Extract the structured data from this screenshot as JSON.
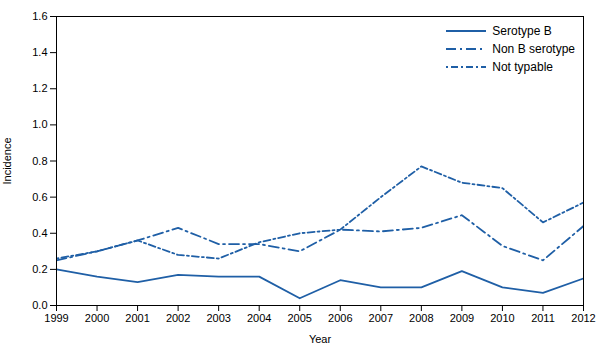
{
  "chart_data": {
    "type": "line",
    "xlabel": "Year",
    "ylabel": "Incidence",
    "x": [
      1999,
      2000,
      2001,
      2002,
      2003,
      2004,
      2005,
      2006,
      2007,
      2008,
      2009,
      2010,
      2011,
      2012
    ],
    "xlim": [
      1999,
      2012
    ],
    "xticks": [
      1999,
      2000,
      2001,
      2002,
      2003,
      2004,
      2005,
      2006,
      2007,
      2008,
      2009,
      2010,
      2011,
      2012
    ],
    "ylim": [
      0.0,
      1.6
    ],
    "yticks": [
      {
        "value": 0.0,
        "label": "0.0"
      },
      0.2,
      0.4,
      0.6,
      0.8,
      {
        "value": 1.0,
        "label": "1.0"
      },
      1.2,
      1.4,
      1.6
    ],
    "legend": "upper right",
    "series": [
      {
        "name": "Serotype B",
        "color": "#1f5fa6",
        "line_style": "solid",
        "values": [
          0.2,
          0.16,
          0.13,
          0.17,
          0.16,
          0.16,
          0.04,
          0.14,
          0.1,
          0.1,
          0.19,
          0.1,
          0.07,
          0.15
        ]
      },
      {
        "name": "Non B serotype",
        "color": "#1f5fa6",
        "line_style": "dashdot",
        "values": [
          0.25,
          0.3,
          0.36,
          0.43,
          0.34,
          0.34,
          0.3,
          0.42,
          0.41,
          0.43,
          0.5,
          0.33,
          0.25,
          0.44
        ]
      },
      {
        "name": "Not typable",
        "color": "#1f5fa6",
        "line_style": "dashed",
        "values": [
          0.26,
          0.3,
          0.36,
          0.28,
          0.26,
          0.35,
          0.4,
          0.42,
          0.6,
          0.77,
          0.68,
          0.65,
          0.46,
          0.57
        ]
      }
    ]
  }
}
